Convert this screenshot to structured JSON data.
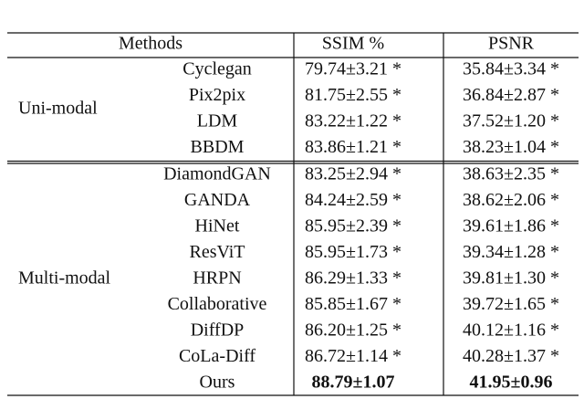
{
  "table": {
    "header": [
      "Methods",
      "SSIM %",
      "PSNR"
    ],
    "groups": [
      {
        "name": "Uni-modal",
        "rows": [
          {
            "method": "Cyclegan",
            "ssim": "79.74±3.21 *",
            "psnr": "35.84±3.34 *"
          },
          {
            "method": "Pix2pix",
            "ssim": "81.75±2.55 *",
            "psnr": "36.84±2.87 *"
          },
          {
            "method": "LDM",
            "ssim": "83.22±1.22 *",
            "psnr": "37.52±1.20 *"
          },
          {
            "method": "BBDM",
            "ssim": "83.86±1.21 *",
            "psnr": "38.23±1.04 *"
          }
        ]
      },
      {
        "name": "Multi-modal",
        "rows": [
          {
            "method": "DiamondGAN",
            "ssim": "83.25±2.94 *",
            "psnr": "38.63±2.35 *"
          },
          {
            "method": "GANDA",
            "ssim": "84.24±2.59 *",
            "psnr": "38.62±2.06 *"
          },
          {
            "method": "HiNet",
            "ssim": "85.95±2.39 *",
            "psnr": "39.61±1.86 *"
          },
          {
            "method": "ResViT",
            "ssim": "85.95±1.73 *",
            "psnr": "39.34±1.28 *"
          },
          {
            "method": "HRPN",
            "ssim": "86.29±1.33 *",
            "psnr": "39.81±1.30 *"
          },
          {
            "method": "Collaborative",
            "ssim": "85.85±1.67 *",
            "psnr": "39.72±1.65 *"
          },
          {
            "method": "DiffDP",
            "ssim": "86.20±1.25 *",
            "psnr": "40.12±1.16 *"
          },
          {
            "method": "CoLa-Diff",
            "ssim": "86.72±1.14 *",
            "psnr": "40.28±1.37 *"
          },
          {
            "method": "Ours",
            "ssim": "88.79±1.07",
            "psnr": "41.95±0.96",
            "bold": true
          }
        ]
      }
    ]
  }
}
